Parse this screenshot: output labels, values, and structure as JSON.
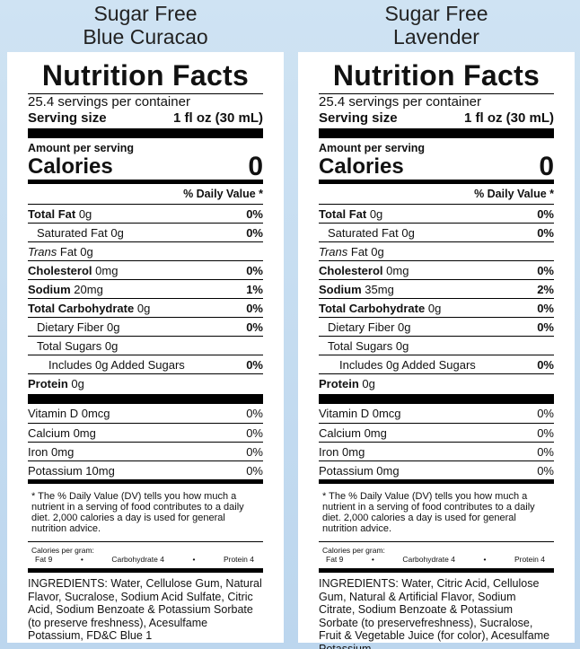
{
  "labels": [
    {
      "title": [
        "Sugar Free",
        "Blue Curacao"
      ],
      "heading": "Nutrition Facts",
      "servings": "25.4 servings per container",
      "serving_size_label": "Serving size",
      "serving_size_value": "1 fl oz (30 mL)",
      "amount_per_serving": "Amount per serving",
      "calories_label": "Calories",
      "calories_value": "0",
      "dv_header": "% Daily Value *",
      "nutrients": [
        {
          "name": "Total Fat",
          "amount": "0g",
          "dv": "0%",
          "style": "bold"
        },
        {
          "name": "Saturated Fat 0g",
          "dv": "0%",
          "style": "sub"
        },
        {
          "name": "Trans",
          "amount": "Fat 0g",
          "style": "italic"
        },
        {
          "name": "Cholesterol",
          "amount": "0mg",
          "dv": "0%",
          "style": "bold"
        },
        {
          "name": "Sodium",
          "amount": "20mg",
          "dv": "1%",
          "style": "bold"
        },
        {
          "name": "Total Carbohydrate",
          "amount": "0g",
          "dv": "0%",
          "style": "bold"
        },
        {
          "name": "Dietary Fiber 0g",
          "dv": "0%",
          "style": "sub"
        },
        {
          "name": "Total Sugars 0g",
          "style": "sub"
        },
        {
          "name": "Includes 0g Added Sugars",
          "dv": "0%",
          "style": "sub2"
        },
        {
          "name": "Protein",
          "amount": "0g",
          "style": "bold"
        }
      ],
      "vitamins": [
        {
          "name": "Vitamin D 0mcg",
          "dv": "0%"
        },
        {
          "name": "Calcium 0mg",
          "dv": "0%"
        },
        {
          "name": "Iron 0mg",
          "dv": "0%"
        },
        {
          "name": "Potassium 10mg",
          "dv": "0%"
        }
      ],
      "footnote": "* The % Daily Value (DV) tells you how much a nutrient in a serving of food contributes to a daily diet. 2,000 calories a day is used for general nutrition advice.",
      "calories_per_gram": "Calories per gram:",
      "per_gram": [
        "Fat 9",
        "Carbohydrate 4",
        "Protein 4"
      ],
      "separator": "•",
      "ingredients": "INGREDIENTS: Water, Cellulose Gum, Natural Flavor, Sucralose, Sodium Acid Sulfate, Citric Acid, Sodium Benzoate & Potassium Sorbate (to preserve freshness), Acesulfame Potassium, FD&C Blue 1"
    },
    {
      "title": [
        "Sugar Free",
        "Lavender"
      ],
      "heading": "Nutrition Facts",
      "servings": "25.4 servings per container",
      "serving_size_label": "Serving size",
      "serving_size_value": "1 fl oz (30 mL)",
      "amount_per_serving": "Amount per serving",
      "calories_label": "Calories",
      "calories_value": "0",
      "dv_header": "% Daily Value *",
      "nutrients": [
        {
          "name": "Total Fat",
          "amount": "0g",
          "dv": "0%",
          "style": "bold"
        },
        {
          "name": "Saturated Fat 0g",
          "dv": "0%",
          "style": "sub"
        },
        {
          "name": "Trans",
          "amount": "Fat 0g",
          "style": "italic"
        },
        {
          "name": "Cholesterol",
          "amount": "0mg",
          "dv": "0%",
          "style": "bold"
        },
        {
          "name": "Sodium",
          "amount": "35mg",
          "dv": "2%",
          "style": "bold"
        },
        {
          "name": "Total Carbohydrate",
          "amount": "0g",
          "dv": "0%",
          "style": "bold"
        },
        {
          "name": "Dietary Fiber 0g",
          "dv": "0%",
          "style": "sub"
        },
        {
          "name": "Total Sugars 0g",
          "style": "sub"
        },
        {
          "name": "Includes 0g Added Sugars",
          "dv": "0%",
          "style": "sub2"
        },
        {
          "name": "Protein",
          "amount": "0g",
          "style": "bold"
        }
      ],
      "vitamins": [
        {
          "name": "Vitamin D 0mcg",
          "dv": "0%"
        },
        {
          "name": "Calcium 0mg",
          "dv": "0%"
        },
        {
          "name": "Iron 0mg",
          "dv": "0%"
        },
        {
          "name": "Potassium 0mg",
          "dv": "0%"
        }
      ],
      "footnote": "* The % Daily Value (DV) tells you how much a nutrient in a serving of food contributes to a daily diet. 2,000 calories a day is used for general nutrition advice.",
      "calories_per_gram": "Calories per gram:",
      "per_gram": [
        "Fat 9",
        "Carbohydrate 4",
        "Protein 4"
      ],
      "separator": "•",
      "ingredients": "INGREDIENTS: Water, Citric Acid, Cellulose Gum, Natural & Artificial Flavor, Sodium Citrate, Sodium Benzoate & Potassium Sorbate (to preservefreshness), Sucralose, Fruit & Vegetable Juice (for color), Acesulfame Potassium"
    }
  ]
}
